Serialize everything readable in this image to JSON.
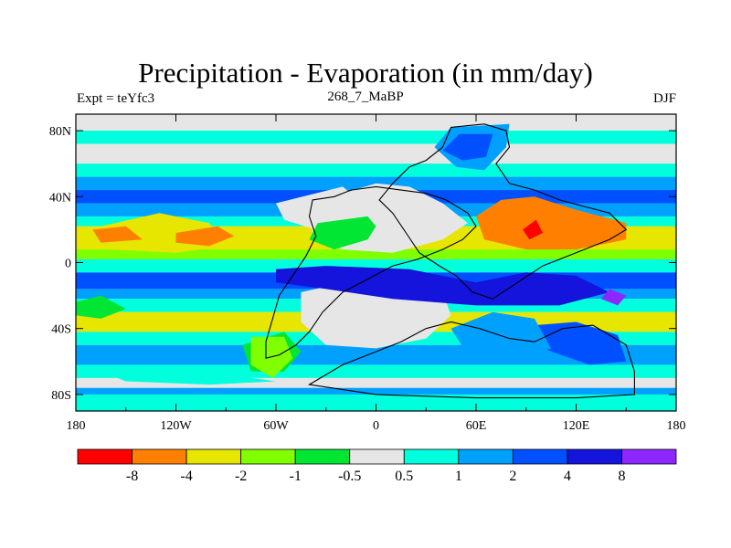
{
  "chart_data": {
    "type": "heatmap",
    "title": "Precipitation - Evaporation (in mm/day)",
    "left_label": "Expt = teYfc3",
    "center_label": "268_7_MaBP",
    "right_label": "DJF",
    "x_ticks": [
      "180",
      "120W",
      "60W",
      "0",
      "60E",
      "120E",
      "180"
    ],
    "y_ticks": [
      "80N",
      "40N",
      "0",
      "40S",
      "80S"
    ],
    "xlim": [
      -180,
      180
    ],
    "ylim": [
      -90,
      90
    ],
    "colorbar": {
      "colors": [
        "#ff0000",
        "#ff8000",
        "#e6e600",
        "#80ff00",
        "#00e632",
        "#e6e6e6",
        "#00ffdc",
        "#00a0ff",
        "#0050ff",
        "#1414dc",
        "#8c28ff"
      ],
      "labels": [
        "-8",
        "-4",
        "-2",
        "-1",
        "-0.5",
        "0.5",
        "1",
        "2",
        "4",
        "8"
      ]
    },
    "zonal_bands": [
      {
        "lat": [
          80,
          90
        ],
        "level": 5
      },
      {
        "lat": [
          72,
          80
        ],
        "level": 6
      },
      {
        "lat": [
          60,
          72
        ],
        "level": 5
      },
      {
        "lat": [
          52,
          60
        ],
        "level": 6
      },
      {
        "lat": [
          44,
          52
        ],
        "level": 7
      },
      {
        "lat": [
          36,
          44
        ],
        "level": 8
      },
      {
        "lat": [
          28,
          36
        ],
        "level": 7
      },
      {
        "lat": [
          22,
          28
        ],
        "level": 6
      },
      {
        "lat": [
          8,
          22
        ],
        "level": 2
      },
      {
        "lat": [
          2,
          8
        ],
        "level": 3
      },
      {
        "lat": [
          -6,
          2
        ],
        "level": 6
      },
      {
        "lat": [
          -16,
          -6
        ],
        "level": 8
      },
      {
        "lat": [
          -22,
          -16
        ],
        "level": 7
      },
      {
        "lat": [
          -30,
          -22
        ],
        "level": 6
      },
      {
        "lat": [
          -42,
          -30
        ],
        "level": 2
      },
      {
        "lat": [
          -50,
          -42
        ],
        "level": 6
      },
      {
        "lat": [
          -62,
          -50
        ],
        "level": 7
      },
      {
        "lat": [
          -70,
          -62
        ],
        "level": 6
      },
      {
        "lat": [
          -76,
          -70
        ],
        "level": 5
      },
      {
        "lat": [
          -80,
          -76
        ],
        "level": 7
      },
      {
        "lat": [
          -90,
          -80
        ],
        "level": 6
      }
    ],
    "regions": [
      {
        "level": 5,
        "points": [
          [
            -40,
            35
          ],
          [
            -20,
            42
          ],
          [
            0,
            48
          ],
          [
            20,
            46
          ],
          [
            40,
            36
          ],
          [
            55,
            24
          ],
          [
            40,
            14
          ],
          [
            10,
            6
          ],
          [
            -20,
            8
          ],
          [
            -38,
            18
          ]
        ]
      },
      {
        "level": 5,
        "points": [
          [
            -45,
            -18
          ],
          [
            -10,
            -10
          ],
          [
            20,
            -8
          ],
          [
            40,
            -18
          ],
          [
            45,
            -32
          ],
          [
            30,
            -46
          ],
          [
            0,
            -52
          ],
          [
            -30,
            -50
          ],
          [
            -45,
            -36
          ]
        ]
      },
      {
        "level": 5,
        "points": [
          [
            -60,
            36
          ],
          [
            -20,
            46
          ],
          [
            0,
            30
          ],
          [
            10,
            22
          ],
          [
            -10,
            14
          ],
          [
            -30,
            18
          ],
          [
            -55,
            26
          ]
        ]
      },
      {
        "level": 4,
        "points": [
          [
            -25,
            8
          ],
          [
            -5,
            14
          ],
          [
            0,
            22
          ],
          [
            -5,
            28
          ],
          [
            -35,
            24
          ],
          [
            -40,
            14
          ]
        ]
      },
      {
        "level": 4,
        "points": [
          [
            -80,
            -50
          ],
          [
            -55,
            -42
          ],
          [
            -45,
            -54
          ],
          [
            -55,
            -66
          ],
          [
            -75,
            -66
          ]
        ]
      },
      {
        "level": 3,
        "points": [
          [
            -75,
            -45
          ],
          [
            -55,
            -45
          ],
          [
            -50,
            -58
          ],
          [
            -62,
            -70
          ],
          [
            -75,
            -62
          ]
        ]
      },
      {
        "level": 7,
        "points": [
          [
            35,
            70
          ],
          [
            45,
            82
          ],
          [
            80,
            84
          ],
          [
            78,
            70
          ],
          [
            65,
            56
          ],
          [
            48,
            58
          ]
        ]
      },
      {
        "level": 8,
        "points": [
          [
            40,
            68
          ],
          [
            50,
            78
          ],
          [
            70,
            78
          ],
          [
            66,
            64
          ],
          [
            52,
            62
          ]
        ]
      },
      {
        "level": 8,
        "points": [
          [
            95,
            -38
          ],
          [
            120,
            -36
          ],
          [
            145,
            -44
          ],
          [
            150,
            -60
          ],
          [
            128,
            -62
          ],
          [
            100,
            -52
          ]
        ]
      },
      {
        "level": 7,
        "points": [
          [
            45,
            -40
          ],
          [
            70,
            -30
          ],
          [
            95,
            -34
          ],
          [
            105,
            -52
          ],
          [
            80,
            -60
          ],
          [
            55,
            -56
          ]
        ]
      },
      {
        "level": 1,
        "points": [
          [
            60,
            28
          ],
          [
            75,
            38
          ],
          [
            95,
            40
          ],
          [
            120,
            32
          ],
          [
            150,
            24
          ],
          [
            150,
            14
          ],
          [
            120,
            8
          ],
          [
            90,
            8
          ],
          [
            65,
            14
          ]
        ]
      },
      {
        "level": 0,
        "points": [
          [
            88,
            20
          ],
          [
            96,
            26
          ],
          [
            100,
            18
          ],
          [
            92,
            14
          ]
        ]
      },
      {
        "level": 2,
        "points": [
          [
            -165,
            22
          ],
          [
            -130,
            30
          ],
          [
            -100,
            24
          ],
          [
            -90,
            10
          ],
          [
            -120,
            6
          ],
          [
            -160,
            8
          ]
        ]
      },
      {
        "level": 1,
        "points": [
          [
            -170,
            20
          ],
          [
            -150,
            22
          ],
          [
            -140,
            14
          ],
          [
            -165,
            12
          ]
        ]
      },
      {
        "level": 1,
        "points": [
          [
            -120,
            18
          ],
          [
            -95,
            22
          ],
          [
            -85,
            16
          ],
          [
            -100,
            10
          ],
          [
            -120,
            12
          ]
        ]
      },
      {
        "level": 4,
        "points": [
          [
            -180,
            -24
          ],
          [
            -165,
            -20
          ],
          [
            -150,
            -28
          ],
          [
            -165,
            -34
          ],
          [
            -180,
            -32
          ]
        ]
      },
      {
        "level": 9,
        "points": [
          [
            -60,
            -4
          ],
          [
            -30,
            -2
          ],
          [
            20,
            -4
          ],
          [
            60,
            -12
          ],
          [
            90,
            -6
          ],
          [
            120,
            -8
          ],
          [
            140,
            -18
          ],
          [
            110,
            -26
          ],
          [
            60,
            -26
          ],
          [
            10,
            -22
          ],
          [
            -30,
            -16
          ],
          [
            -60,
            -12
          ]
        ]
      },
      {
        "level": 10,
        "points": [
          [
            140,
            -16
          ],
          [
            150,
            -20
          ],
          [
            145,
            -26
          ],
          [
            135,
            -22
          ]
        ]
      },
      {
        "level": 6,
        "points": [
          [
            -170,
            -64
          ],
          [
            -120,
            -62
          ],
          [
            -90,
            -68
          ],
          [
            -60,
            -72
          ],
          [
            -100,
            -74
          ],
          [
            -150,
            -72
          ]
        ]
      }
    ],
    "coastlines": [
      {
        "name": "continent-west",
        "points": [
          [
            -38,
            38
          ],
          [
            -25,
            40
          ],
          [
            -15,
            44
          ],
          [
            0,
            46
          ],
          [
            15,
            44
          ],
          [
            30,
            42
          ],
          [
            42,
            38
          ],
          [
            55,
            30
          ],
          [
            60,
            22
          ],
          [
            52,
            14
          ],
          [
            40,
            8
          ],
          [
            25,
            2
          ],
          [
            10,
            -2
          ],
          [
            -5,
            -10
          ],
          [
            -20,
            -18
          ],
          [
            -32,
            -30
          ],
          [
            -40,
            -42
          ],
          [
            -48,
            -50
          ],
          [
            -58,
            -56
          ],
          [
            -66,
            -58
          ],
          [
            -66,
            -48
          ],
          [
            -62,
            -34
          ],
          [
            -58,
            -20
          ],
          [
            -50,
            -8
          ],
          [
            -42,
            4
          ],
          [
            -36,
            16
          ],
          [
            -40,
            28
          ]
        ]
      },
      {
        "name": "continent-east",
        "points": [
          [
            20,
            58
          ],
          [
            30,
            62
          ],
          [
            40,
            70
          ],
          [
            45,
            82
          ],
          [
            65,
            84
          ],
          [
            78,
            80
          ],
          [
            80,
            70
          ],
          [
            72,
            60
          ],
          [
            80,
            48
          ],
          [
            95,
            44
          ],
          [
            110,
            38
          ],
          [
            125,
            34
          ],
          [
            140,
            30
          ],
          [
            150,
            20
          ],
          [
            140,
            14
          ],
          [
            120,
            6
          ],
          [
            100,
            -2
          ],
          [
            85,
            -12
          ],
          [
            70,
            -22
          ],
          [
            58,
            -18
          ],
          [
            48,
            -8
          ],
          [
            38,
            -2
          ],
          [
            26,
            6
          ],
          [
            18,
            18
          ],
          [
            10,
            30
          ],
          [
            2,
            38
          ],
          [
            10,
            48
          ]
        ]
      },
      {
        "name": "continent-south",
        "points": [
          [
            30,
            -40
          ],
          [
            45,
            -36
          ],
          [
            62,
            -40
          ],
          [
            80,
            -46
          ],
          [
            95,
            -48
          ],
          [
            112,
            -40
          ],
          [
            130,
            -38
          ],
          [
            150,
            -50
          ],
          [
            155,
            -66
          ],
          [
            155,
            -80
          ],
          [
            120,
            -82
          ],
          [
            60,
            -82
          ],
          [
            0,
            -80
          ],
          [
            -40,
            -74
          ],
          [
            -20,
            -62
          ],
          [
            0,
            -54
          ],
          [
            15,
            -48
          ]
        ]
      }
    ]
  }
}
